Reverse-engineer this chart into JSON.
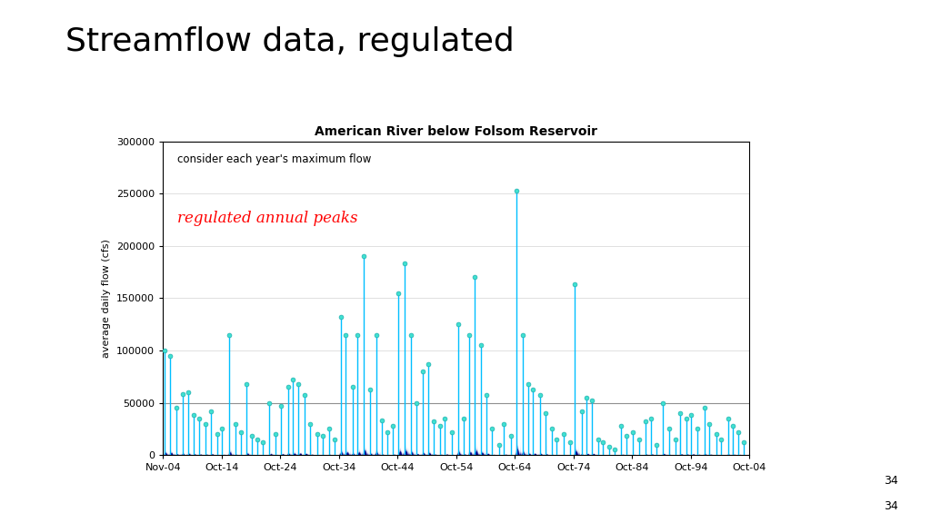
{
  "title": "Streamflow data, regulated",
  "chart_title": "American River below Folsom Reservoir",
  "ylabel": "average daily flow (cfs)",
  "annotation_text": "consider each year's maximum flow",
  "annotation_red": "regulated annual peaks",
  "ylim": [
    0,
    300000
  ],
  "yticks": [
    0,
    50000,
    100000,
    150000,
    200000,
    250000,
    300000
  ],
  "x_tick_labels": [
    "Nov-04",
    "Oct-14",
    "Oct-24",
    "Oct-34",
    "Oct-44",
    "Oct-54",
    "Oct-64",
    "Oct-74",
    "Oct-84",
    "Oct-94",
    "Oct-04"
  ],
  "num_years": 100,
  "daily_flow_color": "#00008B",
  "peak_line_color": "#00BFFF",
  "peak_dot_color": "#40E0D0",
  "hline_y": 50000,
  "hline_color": "#909090",
  "background_color": "#ffffff",
  "page_number": "34",
  "annual_peaks": [
    100000,
    95000,
    45000,
    58000,
    60000,
    38000,
    35000,
    30000,
    42000,
    20000,
    25000,
    115000,
    30000,
    22000,
    68000,
    18000,
    15000,
    12000,
    50000,
    20000,
    47000,
    65000,
    72000,
    68000,
    57000,
    30000,
    20000,
    18000,
    25000,
    15000,
    132000,
    115000,
    65000,
    115000,
    190000,
    63000,
    115000,
    33000,
    22000,
    28000,
    155000,
    183000,
    115000,
    50000,
    80000,
    87000,
    32000,
    28000,
    35000,
    22000,
    125000,
    35000,
    115000,
    170000,
    105000,
    57000,
    25000,
    10000,
    30000,
    18000,
    253000,
    115000,
    68000,
    63000,
    57000,
    40000,
    25000,
    15000,
    20000,
    12000,
    163000,
    42000,
    55000,
    52000,
    15000,
    12000,
    8000,
    5000,
    28000,
    18000,
    22000,
    15000,
    32000,
    35000,
    10000,
    50000,
    25000,
    15000,
    40000,
    35000,
    38000,
    25000,
    45000,
    30000,
    20000,
    15000,
    35000,
    28000,
    22000,
    12000
  ]
}
